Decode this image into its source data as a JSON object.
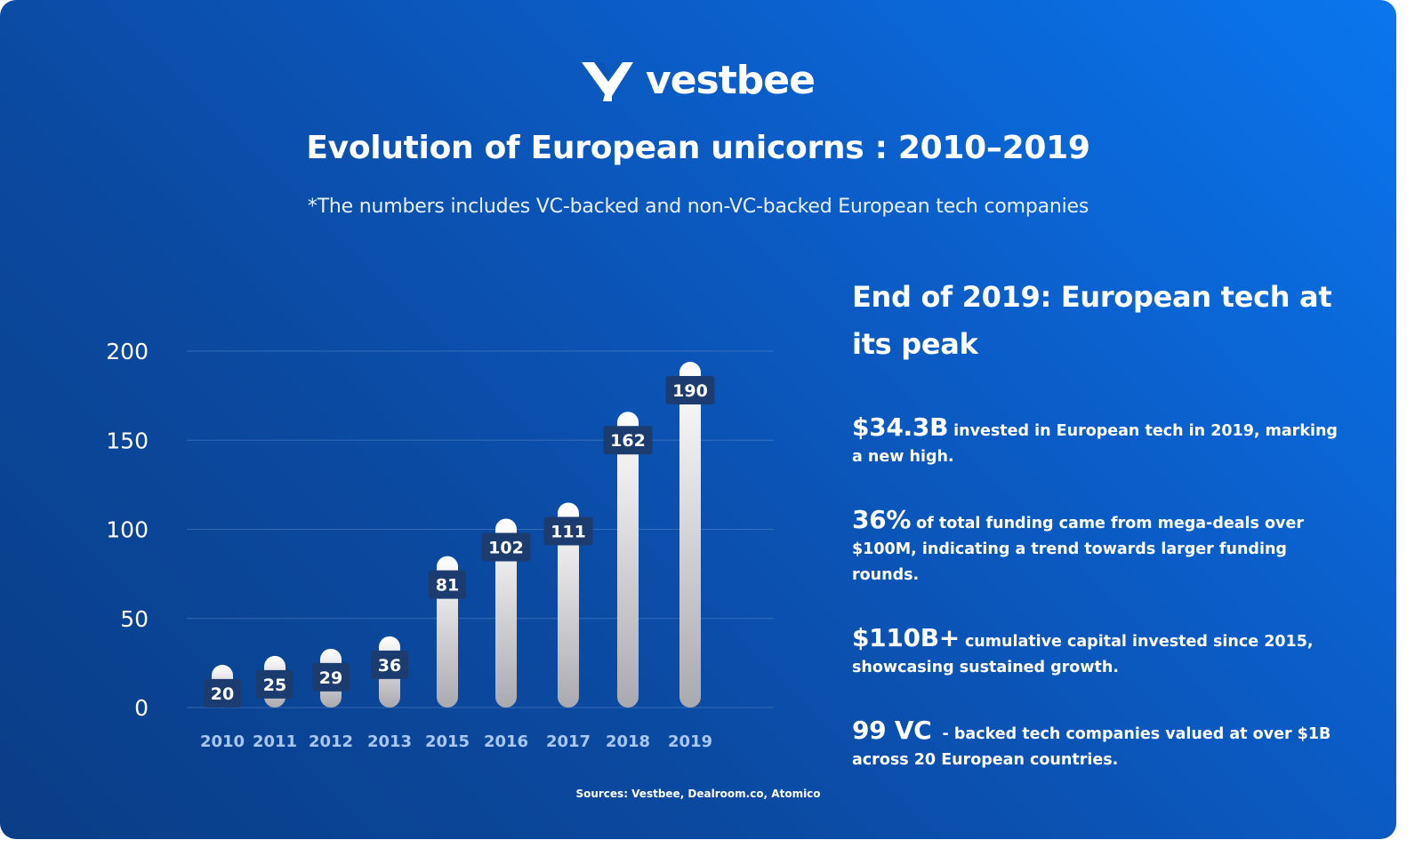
{
  "brand": {
    "name": "vestbee"
  },
  "header": {
    "title": "Evolution of European unicorns : 2010–2019",
    "subtitle": "*The numbers includes VC-backed and non-VC-backed European tech companies"
  },
  "chart_data": {
    "type": "bar",
    "categories": [
      "2010",
      "2011",
      "2012",
      "2013",
      "2015",
      "2016",
      "2017",
      "2018",
      "2019"
    ],
    "values": [
      20,
      25,
      29,
      36,
      81,
      102,
      111,
      162,
      190
    ],
    "yticks": [
      0,
      50,
      100,
      150,
      200
    ],
    "ylim": [
      0,
      200
    ],
    "grid": true
  },
  "panel": {
    "title": "End of 2019: European tech at its peak",
    "stats": [
      {
        "big": "$34.3B",
        "text": "invested in European tech in 2019, marking a new high."
      },
      {
        "big": "36%",
        "text": "of total funding came from mega-deals over $100M, indicating a trend towards larger funding rounds."
      },
      {
        "big": "$110B+",
        "text": "cumulative capital invested since 2015, showcasing sustained growth."
      },
      {
        "big": "99 VC",
        "text": " - backed tech companies valued at over $1B across 20 European countries."
      }
    ]
  },
  "sources": "Sources: Vestbee, Dealroom.co, Atomico",
  "colors": {
    "label_box": "#1c3c70",
    "tick_label_x": "#a9c7f2",
    "grid": "#5a86c9"
  }
}
